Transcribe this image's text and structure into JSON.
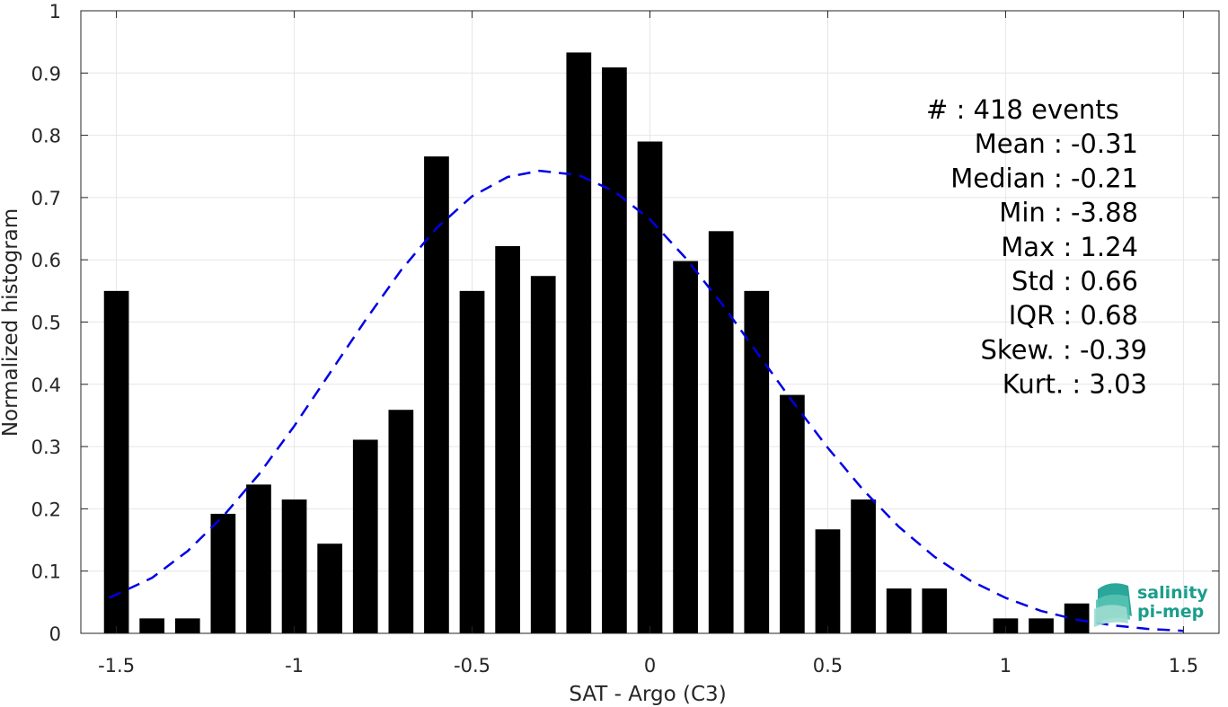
{
  "chart_data": {
    "type": "bar",
    "xlabel": "SAT - Argo (C3)",
    "ylabel": "Normalized histogram",
    "xlim": [
      -1.6,
      1.6
    ],
    "ylim": [
      0,
      1
    ],
    "grid": true,
    "x_ticks": [
      -1.5,
      -1,
      -0.5,
      0,
      0.5,
      1,
      1.5
    ],
    "x_tick_labels": [
      "-1.5",
      "-1",
      "-0.5",
      "0",
      "0.5",
      "1",
      "1.5"
    ],
    "y_ticks": [
      0,
      0.1,
      0.2,
      0.3,
      0.4,
      0.5,
      0.6,
      0.7,
      0.8,
      0.9,
      1
    ],
    "y_tick_labels": [
      "0",
      "0.1",
      "0.2",
      "0.3",
      "0.4",
      "0.5",
      "0.6",
      "0.7",
      "0.8",
      "0.9",
      "1"
    ],
    "bar_width": 0.07,
    "bar_color": "#000000",
    "bars": {
      "x": [
        -1.5,
        -1.4,
        -1.3,
        -1.2,
        -1.1,
        -1.0,
        -0.9,
        -0.8,
        -0.7,
        -0.6,
        -0.5,
        -0.4,
        -0.3,
        -0.2,
        -0.1,
        0.0,
        0.1,
        0.2,
        0.3,
        0.4,
        0.5,
        0.6,
        0.7,
        0.8,
        0.9,
        1.0,
        1.1,
        1.2
      ],
      "values": [
        0.55,
        0.024,
        0.024,
        0.192,
        0.239,
        0.215,
        0.144,
        0.311,
        0.359,
        0.766,
        0.55,
        0.622,
        0.574,
        0.933,
        0.909,
        0.79,
        0.598,
        0.646,
        0.55,
        0.383,
        0.167,
        0.215,
        0.072,
        0.072,
        0.0,
        0.024,
        0.024,
        0.048
      ]
    },
    "fit_curve": {
      "style": "dashed",
      "color": "#0000e6",
      "x": [
        -1.52,
        -1.4,
        -1.3,
        -1.2,
        -1.1,
        -1.0,
        -0.9,
        -0.8,
        -0.7,
        -0.6,
        -0.5,
        -0.4,
        -0.31,
        -0.2,
        -0.1,
        0.0,
        0.1,
        0.2,
        0.3,
        0.4,
        0.5,
        0.6,
        0.7,
        0.8,
        0.9,
        1.0,
        1.1,
        1.2,
        1.3,
        1.4,
        1.5
      ],
      "y": [
        0.057,
        0.089,
        0.132,
        0.188,
        0.255,
        0.333,
        0.418,
        0.503,
        0.583,
        0.651,
        0.702,
        0.733,
        0.743,
        0.736,
        0.71,
        0.665,
        0.603,
        0.531,
        0.452,
        0.373,
        0.298,
        0.23,
        0.171,
        0.123,
        0.085,
        0.057,
        0.036,
        0.022,
        0.013,
        0.007,
        0.004
      ]
    },
    "stats": [
      "#  : 418 events",
      "Mean : -0.31",
      "Median : -0.21",
      "Min : -3.88",
      "Max : 1.24",
      "Std : 0.66",
      "IQR : 0.68",
      "Skew. : -0.39",
      "Kurt. : 3.03"
    ]
  },
  "logo": {
    "line1": "salinity",
    "line2": "pi-mep",
    "icon": "salinity-wave-icon",
    "color": "#1a9e8c"
  }
}
